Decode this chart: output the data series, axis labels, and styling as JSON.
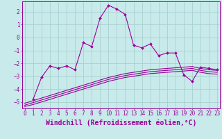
{
  "background_color": "#c8eaea",
  "grid_color": "#a8d0d0",
  "line_color": "#990099",
  "xlabel": "Windchill (Refroidissement éolien,°C)",
  "xlabel_fontsize": 7,
  "yticks": [
    -5,
    -4,
    -3,
    -2,
    -1,
    0,
    1,
    2
  ],
  "xticks": [
    0,
    1,
    2,
    3,
    4,
    5,
    6,
    7,
    8,
    9,
    10,
    11,
    12,
    13,
    14,
    15,
    16,
    17,
    18,
    19,
    20,
    21,
    22,
    23
  ],
  "xlim": [
    -0.3,
    23.3
  ],
  "ylim": [
    -5.5,
    2.8
  ],
  "line1_x": [
    1,
    2,
    3,
    4,
    5,
    6,
    7,
    8,
    9,
    10,
    11,
    12,
    13,
    14,
    15,
    16,
    17,
    18,
    19,
    20,
    21,
    22,
    23
  ],
  "line1_y": [
    -4.8,
    -3.1,
    -2.2,
    -2.4,
    -2.2,
    -2.5,
    -0.4,
    -0.7,
    1.5,
    2.5,
    2.2,
    1.8,
    -0.6,
    -0.8,
    -0.5,
    -1.4,
    -1.2,
    -1.2,
    -2.9,
    -3.4,
    -2.3,
    -2.4,
    -2.5
  ],
  "line2_x": [
    0,
    1,
    2,
    3,
    4,
    5,
    6,
    7,
    8,
    9,
    10,
    11,
    12,
    13,
    14,
    15,
    16,
    17,
    18,
    19,
    20,
    21,
    22,
    23
  ],
  "line2_y": [
    -5.1,
    -4.9,
    -4.7,
    -4.5,
    -4.3,
    -4.1,
    -3.9,
    -3.7,
    -3.5,
    -3.3,
    -3.1,
    -2.95,
    -2.8,
    -2.7,
    -2.6,
    -2.5,
    -2.45,
    -2.4,
    -2.35,
    -2.3,
    -2.25,
    -2.4,
    -2.5,
    -2.55
  ],
  "line3_x": [
    0,
    1,
    2,
    3,
    4,
    5,
    6,
    7,
    8,
    9,
    10,
    11,
    12,
    13,
    14,
    15,
    16,
    17,
    18,
    19,
    20,
    21,
    22,
    23
  ],
  "line3_y": [
    -5.25,
    -5.05,
    -4.85,
    -4.65,
    -4.45,
    -4.25,
    -4.05,
    -3.85,
    -3.65,
    -3.45,
    -3.25,
    -3.1,
    -2.95,
    -2.85,
    -2.75,
    -2.65,
    -2.6,
    -2.55,
    -2.5,
    -2.45,
    -2.4,
    -2.55,
    -2.65,
    -2.7
  ],
  "line4_x": [
    0,
    1,
    2,
    3,
    4,
    5,
    6,
    7,
    8,
    9,
    10,
    11,
    12,
    13,
    14,
    15,
    16,
    17,
    18,
    19,
    20,
    21,
    22,
    23
  ],
  "line4_y": [
    -5.35,
    -5.2,
    -5.0,
    -4.8,
    -4.6,
    -4.4,
    -4.2,
    -4.0,
    -3.8,
    -3.6,
    -3.4,
    -3.25,
    -3.1,
    -3.0,
    -2.9,
    -2.8,
    -2.75,
    -2.7,
    -2.65,
    -2.6,
    -2.55,
    -2.7,
    -2.8,
    -2.85
  ],
  "marker": "D",
  "marker_size": 2.0,
  "tick_fontsize": 5.5,
  "tick_color": "#990099",
  "font_family": "monospace"
}
